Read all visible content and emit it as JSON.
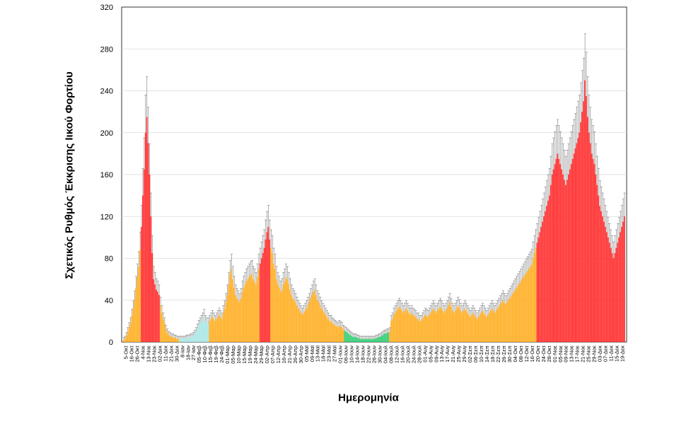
{
  "chart_data": {
    "type": "bar",
    "title": "",
    "xlabel": "Ημερομηνία",
    "ylabel": "Σχετικός Ρυθμός Έκκρισης Ιικού Φορτίου",
    "ylim": [
      0,
      320
    ],
    "yticks": [
      0,
      40,
      80,
      120,
      160,
      200,
      240,
      280,
      320
    ],
    "grid": true,
    "legend": "none",
    "colors": {
      "red": "#ff2a2a",
      "orange": "#ffad1f",
      "green": "#2ecc71",
      "cyan": "#a8e6e6",
      "error_bar": "#7a7a7a",
      "gridline": "#d9d9d9"
    },
    "x_tick_labels": [
      "5-Οκτ",
      "16-Οκτ",
      "26-Οκτ",
      "4-Νοε",
      "13-Νοε",
      "23-Νοε",
      "02-Δεκ",
      "11-Δεκ",
      "21-Δεκ",
      "30-Δεκ",
      "8-Ιαν",
      "18-Ιαν",
      "27-Ιαν",
      "05-Φεβ",
      "10-Φεβ",
      "15-Φεβ",
      "19-Φεβ",
      "24-Φεβ",
      "01-Μαρ",
      "05-Μαρ",
      "10-Μαρ",
      "15-Μαρ",
      "19-Μαρ",
      "24-Μαρ",
      "29-Μαρ",
      "02-Απρ",
      "07-Απρ",
      "12-Απρ",
      "16-Απρ",
      "21-Απρ",
      "26-Απρ",
      "30-Απρ",
      "05-Μαϊ",
      "09-Μαϊ",
      "13-Μαϊ",
      "18-Μαϊ",
      "23-Μαϊ",
      "27-Μαϊ",
      "01-Ιουν",
      "06-Ιουν",
      "10-Ιουν",
      "14-Ιουν",
      "18-Ιουν",
      "22-Ιουν",
      "26-Ιουν",
      "30-Ιουν",
      "04-Ιουλ",
      "08-Ιουλ",
      "12-Ιουλ",
      "16-Ιουλ",
      "20-Ιουλ",
      "24-Ιουλ",
      "28-Ιουλ",
      "01-Αυγ",
      "05-Αυγ",
      "09-Αυγ",
      "13-Αυγ",
      "17-Αυγ",
      "21-Αυγ",
      "25-Αυγ",
      "29-Αυγ",
      "02-Σεπ",
      "06-Σεπ",
      "10-Σεπ",
      "14-Σεπ",
      "18-Σεπ",
      "22-Σεπ",
      "26-Σεπ",
      "30-Σεπ",
      "04-Οκτ",
      "08-Οκτ",
      "12-Οκτ",
      "16-Οκτ",
      "20-Οκτ",
      "24-Οκτ",
      "28-Οκτ",
      "01-Νοε",
      "05-Νοε",
      "09-Νοε",
      "13-Νοε",
      "17-Νοε",
      "21-Νοε",
      "25-Νοε",
      "29-Νοε",
      "03-Δεκ",
      "07-Δεκ",
      "11-Δεκ",
      "15-Δεκ",
      "19-Δεκ"
    ],
    "series": [
      {
        "values": [
          2,
          3,
          6,
          10,
          14,
          18,
          25,
          32,
          40,
          52,
          62,
          72,
          88,
          110,
          140,
          165,
          200,
          215,
          190,
          160,
          120,
          85,
          60,
          55,
          50,
          48,
          45,
          35,
          28,
          22,
          18,
          12,
          9,
          7,
          6,
          5,
          5,
          4,
          4,
          3,
          3,
          3,
          3,
          3,
          3,
          3,
          4,
          4,
          4,
          5,
          5,
          6,
          8,
          10,
          13,
          16,
          18,
          20,
          22,
          25,
          20,
          18,
          18,
          20,
          22,
          24,
          22,
          20,
          22,
          24,
          26,
          24,
          22,
          28,
          32,
          38,
          45,
          55,
          65,
          70,
          60,
          52,
          45,
          42,
          40,
          38,
          42,
          48,
          52,
          55,
          58,
          60,
          62,
          64,
          65,
          60,
          58,
          55,
          62,
          70,
          75,
          80,
          85,
          90,
          98,
          105,
          110,
          98,
          90,
          85,
          75,
          70,
          60,
          55,
          52,
          48,
          50,
          55,
          58,
          62,
          60,
          55,
          50,
          45,
          42,
          40,
          38,
          35,
          32,
          30,
          28,
          26,
          28,
          30,
          32,
          35,
          38,
          42,
          45,
          48,
          50,
          45,
          40,
          38,
          35,
          32,
          30,
          28,
          26,
          24,
          22,
          20,
          20,
          18,
          17,
          16,
          15,
          14,
          16,
          15,
          14,
          12,
          11,
          10,
          9,
          8,
          7,
          6,
          5,
          5,
          5,
          4,
          4,
          3,
          3,
          3,
          3,
          3,
          3,
          3,
          3,
          3,
          3,
          3,
          3,
          4,
          4,
          5,
          5,
          6,
          7,
          8,
          8,
          9,
          9,
          10,
          20,
          22,
          26,
          28,
          30,
          32,
          34,
          32,
          30,
          28,
          30,
          32,
          30,
          28,
          26,
          28,
          26,
          25,
          24,
          22,
          22,
          20,
          20,
          22,
          24,
          26,
          25,
          24,
          26,
          28,
          30,
          32,
          30,
          28,
          30,
          32,
          34,
          32,
          30,
          28,
          30,
          32,
          35,
          38,
          34,
          30,
          28,
          30,
          32,
          35,
          33,
          30,
          28,
          30,
          32,
          30,
          28,
          26,
          24,
          26,
          28,
          26,
          24,
          22,
          24,
          26,
          28,
          30,
          28,
          26,
          24,
          26,
          28,
          30,
          32,
          30,
          28,
          30,
          32,
          34,
          36,
          38,
          40,
          38,
          36,
          38,
          40,
          42,
          44,
          46,
          48,
          50,
          52,
          54,
          56,
          58,
          60,
          62,
          64,
          66,
          68,
          70,
          72,
          74,
          80,
          85,
          90,
          95,
          100,
          105,
          110,
          115,
          120,
          125,
          130,
          135,
          140,
          150,
          160,
          165,
          170,
          175,
          180,
          175,
          170,
          165,
          160,
          155,
          150,
          155,
          160,
          165,
          170,
          175,
          180,
          185,
          190,
          195,
          200,
          210,
          220,
          230,
          250,
          235,
          215,
          200,
          190,
          180,
          175,
          170,
          160,
          150,
          140,
          130,
          125,
          120,
          115,
          110,
          105,
          100,
          95,
          90,
          85,
          80,
          85,
          90,
          95,
          100,
          105,
          110,
          115,
          120
        ]
      }
    ]
  }
}
